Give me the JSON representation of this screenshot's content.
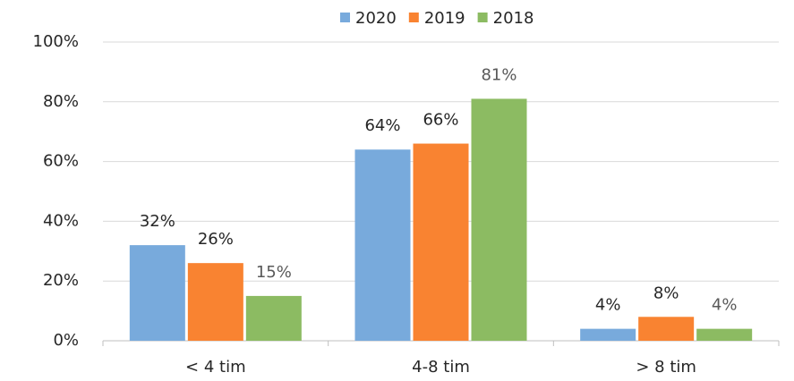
{
  "chart_data": {
    "type": "bar",
    "categories": [
      "< 4 tim",
      "4-8 tim",
      "> 8 tim"
    ],
    "series": [
      {
        "name": "2020",
        "color": "#78aadc",
        "label_color": "#262626",
        "values": [
          32,
          64,
          4
        ],
        "value_labels": [
          "32%",
          "64%",
          "4%"
        ]
      },
      {
        "name": "2019",
        "color": "#f98331",
        "label_color": "#262626",
        "values": [
          26,
          66,
          8
        ],
        "value_labels": [
          "26%",
          "66%",
          "8%"
        ]
      },
      {
        "name": "2018",
        "color": "#8cbb62",
        "label_color": "#595959",
        "values": [
          15,
          81,
          4
        ],
        "value_labels": [
          "15%",
          "81%",
          "4%"
        ]
      }
    ],
    "ylim": [
      0,
      100
    ],
    "yticks": [
      {
        "value": 0,
        "label": "0%"
      },
      {
        "value": 20,
        "label": "20%"
      },
      {
        "value": 40,
        "label": "40%"
      },
      {
        "value": 60,
        "label": "60%"
      },
      {
        "value": 80,
        "label": "80%"
      },
      {
        "value": 100,
        "label": "100%"
      }
    ],
    "grid": true,
    "legend": "top"
  }
}
